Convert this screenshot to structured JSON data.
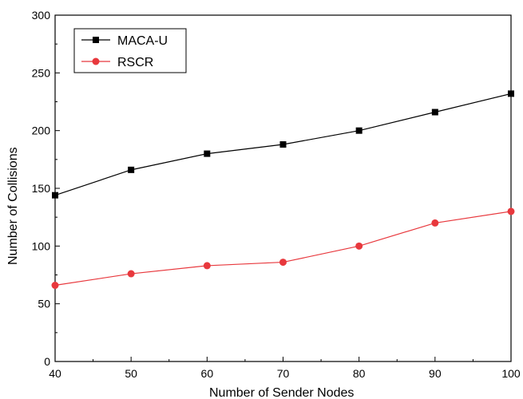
{
  "chart_data": {
    "type": "line",
    "xlabel": "Number of Sender Nodes",
    "ylabel": "Number of Collisions",
    "x": [
      40,
      50,
      60,
      70,
      80,
      90,
      100
    ],
    "xlim": [
      40,
      100
    ],
    "ylim": [
      0,
      300
    ],
    "xticks": [
      40,
      50,
      60,
      70,
      80,
      90,
      100
    ],
    "yticks": [
      0,
      50,
      100,
      150,
      200,
      250,
      300
    ],
    "grid": false,
    "legend_position": "top-left",
    "series": [
      {
        "name": "MACA-U",
        "values": [
          144,
          166,
          180,
          188,
          200,
          216,
          232
        ],
        "color": "#000000",
        "marker": "square"
      },
      {
        "name": "RSCR",
        "values": [
          66,
          76,
          83,
          86,
          100,
          120,
          130
        ],
        "color": "#e8383d",
        "marker": "circle"
      }
    ]
  }
}
